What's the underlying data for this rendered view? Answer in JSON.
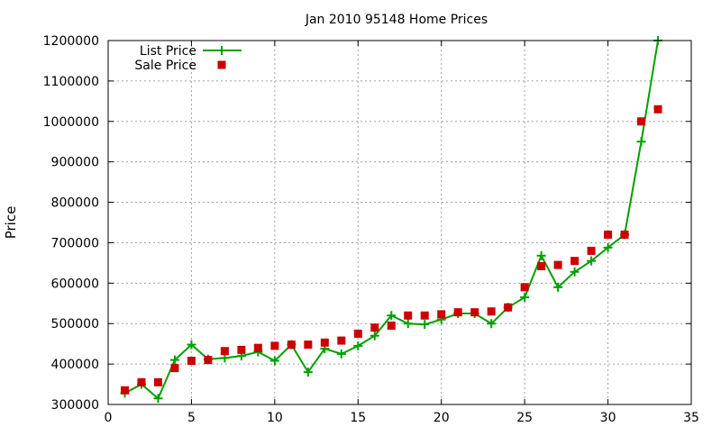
{
  "chart_data": {
    "type": "line",
    "title": "Jan 2010 95148 Home Prices",
    "xlabel": "",
    "ylabel": "Price",
    "xlim": [
      0,
      35
    ],
    "ylim": [
      300000,
      1200000
    ],
    "x_ticks": [
      0,
      5,
      10,
      15,
      20,
      25,
      30,
      35
    ],
    "y_ticks": [
      300000,
      400000,
      500000,
      600000,
      700000,
      800000,
      900000,
      1000000,
      1100000,
      1200000
    ],
    "grid": true,
    "legend_position": "top-left",
    "series": [
      {
        "name": "List Price",
        "style": "lines+points",
        "marker": "plus",
        "color": "#00a000",
        "x": [
          1,
          2,
          3,
          4,
          5,
          6,
          7,
          8,
          9,
          10,
          11,
          12,
          13,
          14,
          15,
          16,
          17,
          18,
          19,
          20,
          21,
          22,
          23,
          24,
          25,
          26,
          27,
          28,
          29,
          30,
          31,
          32,
          33
        ],
        "values": [
          328000,
          350000,
          315000,
          410000,
          448000,
          412000,
          415000,
          420000,
          430000,
          408000,
          448000,
          380000,
          438000,
          425000,
          445000,
          470000,
          520000,
          500000,
          498000,
          510000,
          525000,
          525000,
          500000,
          540000,
          565000,
          668000,
          590000,
          628000,
          655000,
          688000,
          720000,
          950000,
          1200000
        ]
      },
      {
        "name": "Sale Price",
        "style": "points",
        "marker": "square",
        "color": "#cc0000",
        "x": [
          1,
          2,
          3,
          4,
          5,
          6,
          7,
          8,
          9,
          10,
          11,
          12,
          13,
          14,
          15,
          16,
          17,
          18,
          19,
          20,
          21,
          22,
          23,
          24,
          25,
          26,
          27,
          28,
          29,
          30,
          31,
          32,
          33
        ],
        "values": [
          335000,
          355000,
          355000,
          390000,
          408000,
          410000,
          432000,
          435000,
          440000,
          445000,
          448000,
          448000,
          453000,
          458000,
          475000,
          490000,
          495000,
          520000,
          520000,
          523000,
          528000,
          528000,
          530000,
          540000,
          590000,
          642000,
          645000,
          655000,
          680000,
          720000,
          720000,
          1000000,
          1030000
        ]
      }
    ]
  }
}
